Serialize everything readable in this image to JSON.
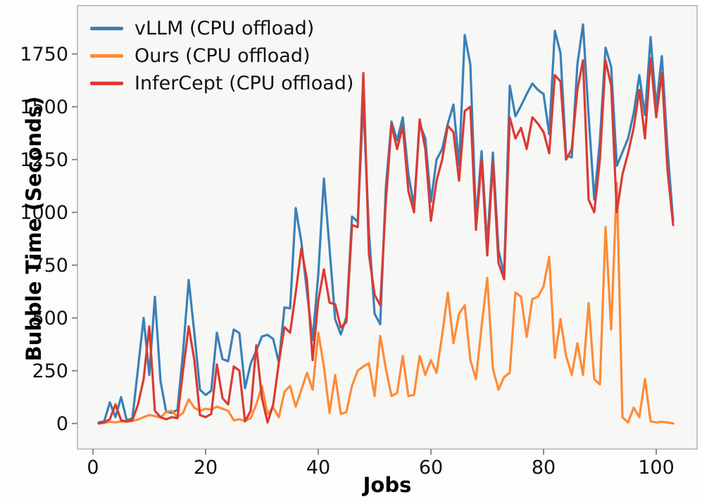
{
  "chart_data": {
    "type": "line",
    "title": "",
    "xlabel": "Jobs",
    "ylabel": "Bubble Time (Seconds)",
    "xlim": [
      -2.75,
      107.25
    ],
    "ylim": [
      -121,
      1979
    ],
    "xticks": [
      0,
      20,
      40,
      60,
      80,
      100
    ],
    "yticks": [
      0,
      250,
      500,
      750,
      1000,
      1250,
      1500,
      1750
    ],
    "grid": false,
    "legend_position": "upper-left",
    "plot_background": "#f7f7f6",
    "spine_color": "#b4b4b2",
    "tick_color": "#7f7f7f",
    "tick_label_color": "#111111",
    "x": {
      "start": 1,
      "step": 1,
      "count": 103
    },
    "series": [
      {
        "name": "vLLM (CPU offload)",
        "color": "#3a80b8",
        "values": [
          5,
          10,
          100,
          30,
          125,
          15,
          25,
          260,
          500,
          230,
          600,
          200,
          55,
          50,
          65,
          340,
          680,
          430,
          160,
          135,
          155,
          430,
          305,
          295,
          445,
          428,
          167,
          283,
          345,
          412,
          420,
          400,
          289,
          550,
          545,
          1020,
          860,
          622,
          395,
          705,
          1160,
          830,
          494,
          422,
          505,
          980,
          955,
          1530,
          905,
          520,
          470,
          1120,
          1430,
          1340,
          1450,
          1180,
          1030,
          1420,
          1350,
          1050,
          1250,
          1300,
          1420,
          1510,
          1220,
          1840,
          1700,
          960,
          1290,
          840,
          1283,
          820,
          706,
          1600,
          1455,
          1505,
          1560,
          1610,
          1580,
          1560,
          1370,
          1860,
          1755,
          1270,
          1260,
          1700,
          1890,
          1455,
          1060,
          1340,
          1780,
          1690,
          1220,
          1285,
          1350,
          1470,
          1650,
          1460,
          1830,
          1500,
          1740,
          1300,
          960
        ]
      },
      {
        "name": "Ours (CPU offload)",
        "color": "#ff8b35",
        "values": [
          0,
          3,
          8,
          5,
          10,
          8,
          12,
          18,
          30,
          40,
          35,
          28,
          55,
          60,
          30,
          50,
          115,
          75,
          60,
          70,
          65,
          80,
          70,
          60,
          15,
          20,
          12,
          25,
          90,
          178,
          45,
          75,
          30,
          150,
          178,
          80,
          160,
          240,
          160,
          430,
          270,
          50,
          230,
          45,
          55,
          180,
          250,
          270,
          285,
          130,
          415,
          260,
          130,
          145,
          320,
          130,
          135,
          320,
          230,
          300,
          240,
          420,
          620,
          380,
          520,
          560,
          300,
          210,
          460,
          690,
          260,
          160,
          220,
          240,
          620,
          600,
          410,
          590,
          600,
          650,
          790,
          310,
          495,
          320,
          230,
          380,
          230,
          570,
          210,
          185,
          930,
          445,
          1140,
          30,
          5,
          75,
          30,
          210,
          10,
          5,
          8,
          5,
          0
        ]
      },
      {
        "name": "InferCept (CPU offload)",
        "color": "#d93b33",
        "values": [
          0,
          5,
          20,
          90,
          15,
          10,
          15,
          90,
          210,
          460,
          60,
          30,
          20,
          30,
          25,
          250,
          460,
          300,
          40,
          30,
          45,
          280,
          120,
          90,
          270,
          250,
          10,
          60,
          370,
          120,
          5,
          90,
          287,
          456,
          430,
          620,
          830,
          680,
          300,
          580,
          730,
          572,
          565,
          455,
          480,
          940,
          930,
          1660,
          800,
          610,
          560,
          1050,
          1415,
          1300,
          1410,
          1100,
          1000,
          1440,
          1300,
          960,
          1150,
          1250,
          1410,
          1380,
          1150,
          1480,
          1500,
          917,
          1250,
          796,
          1240,
          760,
          683,
          1450,
          1350,
          1400,
          1300,
          1450,
          1420,
          1380,
          1280,
          1650,
          1620,
          1250,
          1300,
          1580,
          1720,
          1060,
          1000,
          1250,
          1720,
          1600,
          1000,
          1180,
          1280,
          1400,
          1580,
          1350,
          1730,
          1450,
          1660,
          1200,
          940
        ]
      }
    ]
  }
}
